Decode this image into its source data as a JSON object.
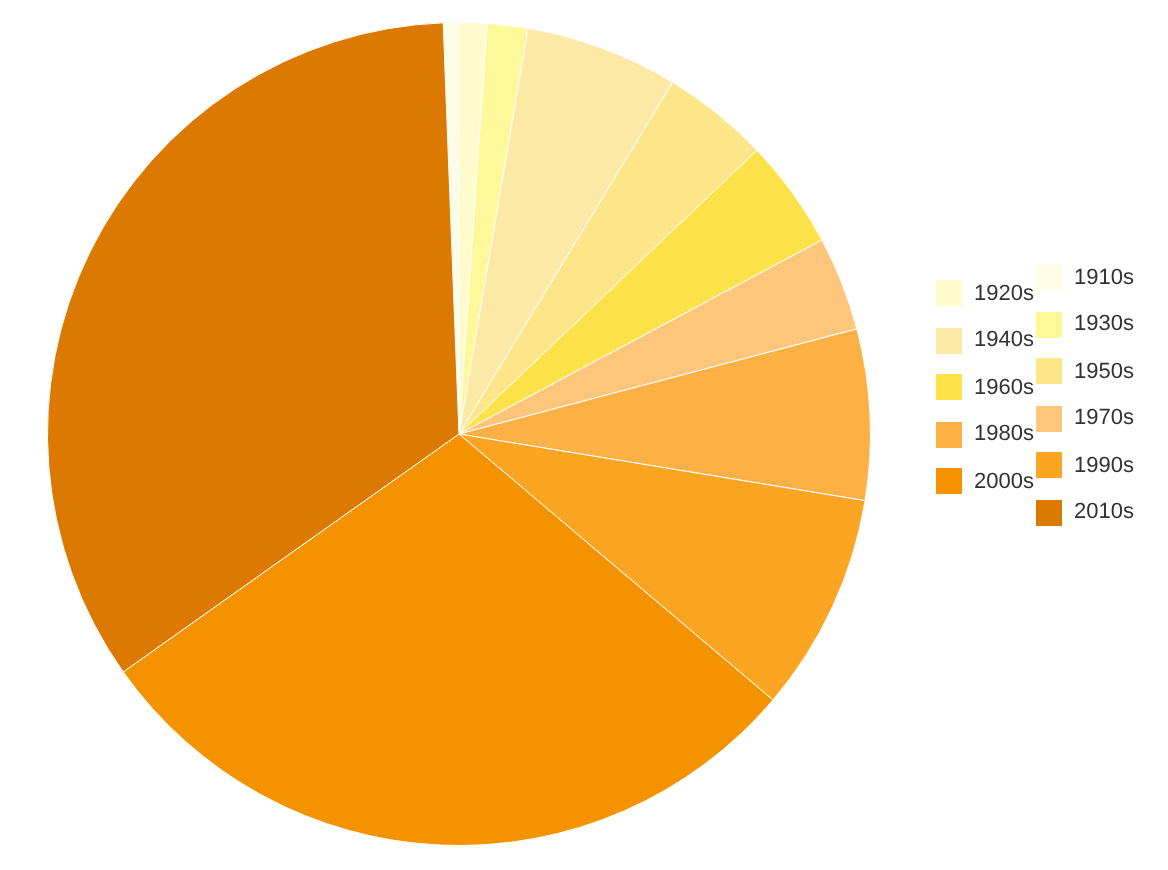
{
  "chart_data": {
    "type": "pie",
    "categories": [
      "1910s",
      "1920s",
      "1930s",
      "1940s",
      "1950s",
      "1960s",
      "1970s",
      "1980s",
      "1990s",
      "2000s",
      "2010s"
    ],
    "values": [
      0.6,
      1.1,
      1.6,
      6.0,
      4.2,
      4.3,
      3.7,
      6.7,
      8.6,
      29.0,
      34.2
    ],
    "colors": [
      "#fffde6",
      "#fffbcc",
      "#fdf99a",
      "#fde9a6",
      "#fde68a",
      "#fee24a",
      "#fdc67a",
      "#fdb043",
      "#fca522",
      "#f59200",
      "#dc7900"
    ],
    "legend": "right"
  }
}
